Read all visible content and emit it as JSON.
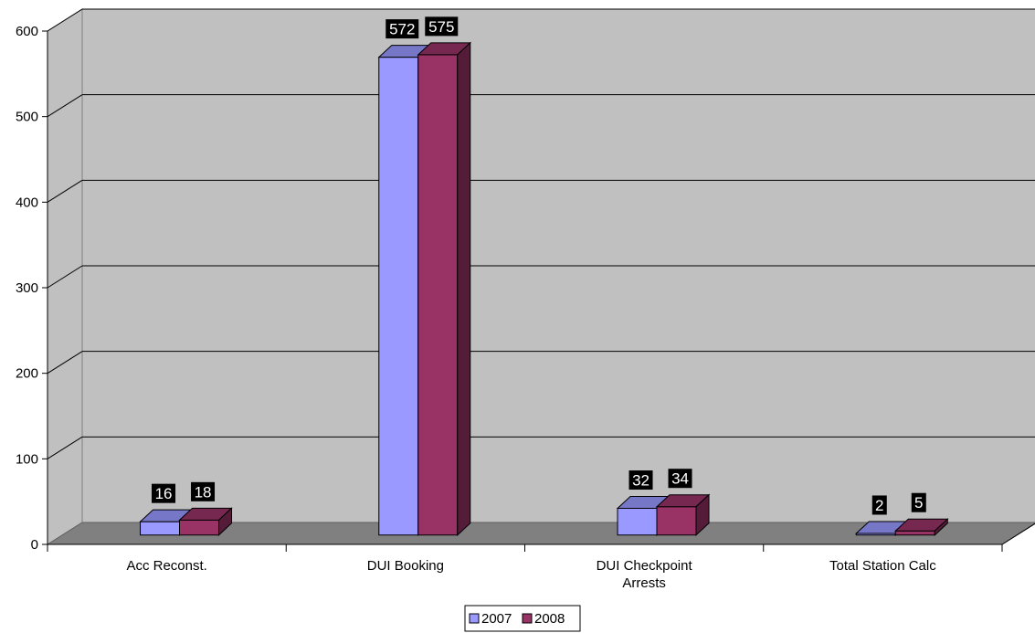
{
  "chart_data": {
    "type": "bar",
    "title": "",
    "xlabel": "",
    "ylabel": "",
    "categories": [
      [
        "Acc Reconst."
      ],
      [
        "DUI Booking"
      ],
      [
        "DUI Checkpoint",
        "Arrests"
      ],
      [
        "Total Station Calc"
      ]
    ],
    "series": [
      {
        "name": "2007",
        "values": [
          16,
          572,
          32,
          2
        ],
        "color": "#9999ff"
      },
      {
        "name": "2008",
        "values": [
          18,
          575,
          34,
          5
        ],
        "color": "#993366"
      }
    ],
    "ylim": [
      0,
      600
    ],
    "yticks": [
      "0",
      "100",
      "200",
      "300",
      "400",
      "500",
      "600"
    ],
    "grid": true,
    "three_d": true,
    "data_labels": true,
    "legend_position": "bottom"
  }
}
